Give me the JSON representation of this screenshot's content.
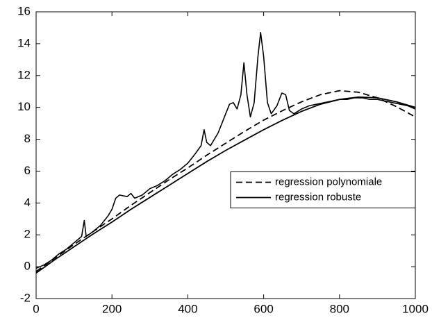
{
  "chart_data": {
    "type": "line",
    "xlim": [
      0,
      1000
    ],
    "xticks": [
      0,
      200,
      400,
      600,
      800,
      1000
    ],
    "ylim": [
      -2,
      16
    ],
    "yticks": [
      -2,
      0,
      2,
      4,
      6,
      8,
      10,
      12,
      14,
      16
    ],
    "grid": false,
    "legend": "center right",
    "series": [
      {
        "color": "#000000",
        "style": "solid",
        "x": [
          0,
          20,
          40,
          60,
          80,
          100,
          120,
          127,
          132,
          150,
          170,
          190,
          200,
          210,
          220,
          240,
          250,
          260,
          280,
          300,
          320,
          340,
          360,
          380,
          400,
          420,
          435,
          443,
          450,
          460,
          480,
          500,
          510,
          520,
          530,
          540,
          548,
          556,
          565,
          575,
          585,
          592,
          600,
          610,
          620,
          635,
          648,
          658,
          668,
          680,
          700,
          720,
          740,
          760,
          780,
          800,
          820,
          840,
          860,
          880,
          900,
          920,
          940,
          960,
          980,
          1000
        ],
        "values": [
          -0.1,
          0.1,
          0.4,
          0.8,
          1.1,
          1.5,
          1.9,
          2.9,
          1.9,
          2.2,
          2.6,
          3.2,
          3.6,
          4.3,
          4.5,
          4.4,
          4.6,
          4.3,
          4.5,
          4.9,
          5.1,
          5.4,
          5.8,
          6.1,
          6.5,
          7.1,
          7.6,
          8.6,
          7.8,
          7.6,
          8.4,
          9.6,
          10.2,
          10.3,
          9.9,
          10.8,
          12.8,
          10.8,
          9.4,
          10.3,
          13.2,
          14.7,
          13.2,
          10.3,
          9.6,
          10.1,
          10.9,
          10.8,
          9.8,
          9.6,
          9.9,
          10.1,
          10.2,
          10.3,
          10.4,
          10.5,
          10.5,
          10.6,
          10.6,
          10.5,
          10.5,
          10.4,
          10.3,
          10.2,
          10.1,
          9.9
        ]
      },
      {
        "name": "regression polynomiale",
        "color": "#000000",
        "style": "dashed",
        "x": [
          0,
          50,
          100,
          150,
          200,
          250,
          300,
          350,
          400,
          450,
          500,
          550,
          600,
          650,
          700,
          750,
          800,
          850,
          900,
          950,
          1000
        ],
        "values": [
          -0.3,
          0.55,
          1.4,
          2.2,
          3.0,
          3.85,
          4.65,
          5.45,
          6.2,
          7.0,
          7.75,
          8.5,
          9.2,
          9.8,
          10.35,
          10.8,
          11.05,
          10.95,
          10.6,
          10.05,
          9.4
        ]
      },
      {
        "name": "regression robuste",
        "color": "#000000",
        "style": "solid",
        "x": [
          0,
          50,
          100,
          150,
          200,
          250,
          300,
          350,
          400,
          450,
          500,
          550,
          600,
          650,
          700,
          750,
          800,
          850,
          900,
          950,
          1000
        ],
        "values": [
          -0.4,
          0.45,
          1.25,
          2.05,
          2.8,
          3.6,
          4.35,
          5.1,
          5.85,
          6.6,
          7.3,
          7.95,
          8.6,
          9.2,
          9.75,
          10.2,
          10.5,
          10.65,
          10.6,
          10.35,
          10.0
        ]
      }
    ]
  }
}
